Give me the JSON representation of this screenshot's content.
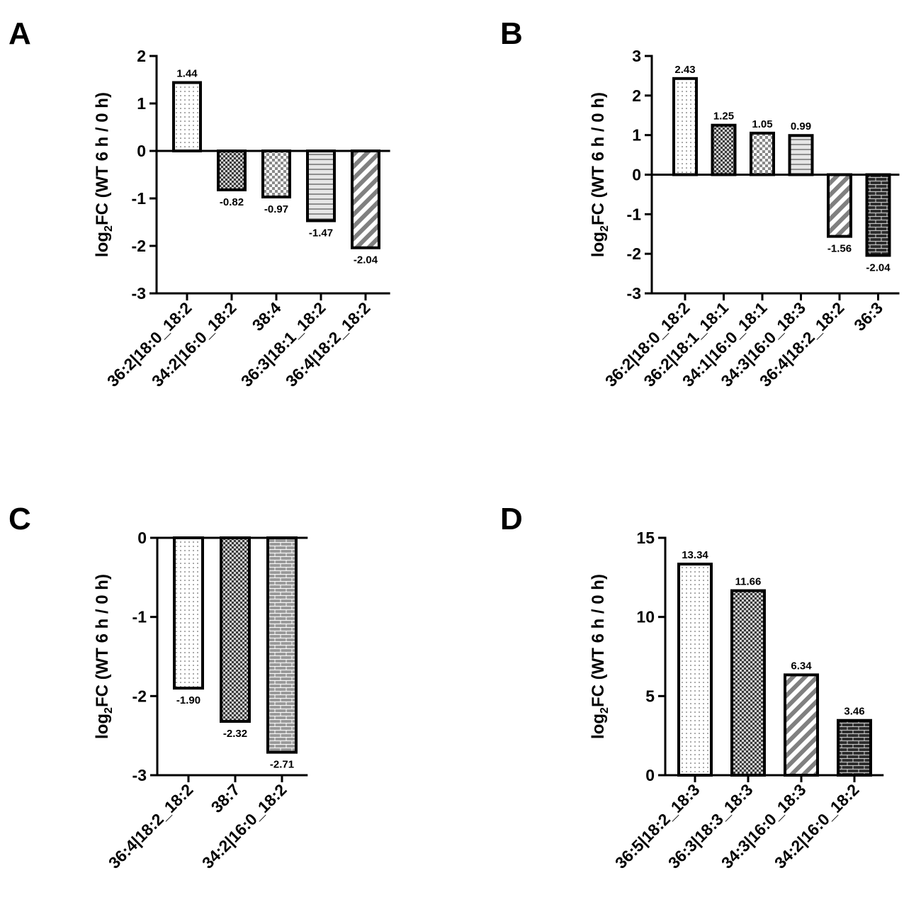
{
  "chart_data": [
    {
      "panel": "A",
      "type": "bar",
      "ylabel_main": "log",
      "ylabel_sub": "2",
      "ylabel_rest": "FC (WT 6 h / 0 h)",
      "ylim": [
        -3,
        2
      ],
      "yticks": [
        "-3",
        "-2",
        "-1",
        "0",
        "1",
        "2"
      ],
      "categories": [
        "36:2|18:0_18:2",
        "34:2|16:0_18:2",
        "38:4",
        "36:3|18:1_18:2",
        "36:4|18:2_18:2"
      ],
      "values": [
        1.44,
        -0.82,
        -0.97,
        -1.47,
        -2.04
      ],
      "value_labels": [
        "1.44",
        "-0.82",
        "-0.97",
        "-1.47",
        "-2.04"
      ],
      "patterns": [
        "dots",
        "checker-dark",
        "checker-light",
        "hlines",
        "diag"
      ]
    },
    {
      "panel": "B",
      "type": "bar",
      "ylabel_main": "log",
      "ylabel_sub": "2",
      "ylabel_rest": "FC (WT 6 h / 0 h)",
      "ylim": [
        -3,
        3
      ],
      "yticks": [
        "-3",
        "-2",
        "-1",
        "0",
        "1",
        "2",
        "3"
      ],
      "categories": [
        "36:2|18:0_18:2",
        "36:2|18:1_18:1",
        "34:1|16:0_18:1",
        "34:3|16:0_18:3",
        "36:4|18:2_18:2",
        "36:3"
      ],
      "values": [
        2.43,
        1.25,
        1.05,
        0.99,
        -1.56,
        -2.04
      ],
      "value_labels": [
        "2.43",
        "1.25",
        "1.05",
        "0.99",
        "-1.56",
        "-2.04"
      ],
      "patterns": [
        "dots",
        "checker-dark",
        "checker-light",
        "hlines",
        "diag",
        "brick-dark"
      ]
    },
    {
      "panel": "C",
      "type": "bar",
      "ylabel_main": "log",
      "ylabel_sub": "2",
      "ylabel_rest": "FC (WT 6 h / 0 h)",
      "ylim": [
        -3,
        0
      ],
      "yticks": [
        "-3",
        "-2",
        "-1",
        "0"
      ],
      "categories": [
        "36:4|18:2_18:2",
        "38:7",
        "34:2|16:0_18:2"
      ],
      "values": [
        -1.9,
        -2.32,
        -2.71
      ],
      "value_labels": [
        "-1.90",
        "-2.32",
        "-2.71"
      ],
      "patterns": [
        "dots",
        "checker-dark",
        "brick-light"
      ]
    },
    {
      "panel": "D",
      "type": "bar",
      "ylabel_main": "log",
      "ylabel_sub": "2",
      "ylabel_rest": "FC (WT 6 h / 0 h)",
      "ylim": [
        0,
        15
      ],
      "yticks": [
        "0",
        "5",
        "10",
        "15"
      ],
      "categories": [
        "36:5|18:2_18:3",
        "36:3|18:3_18:3",
        "34:3|16:0_18:3",
        "34:2|16:0_18:2"
      ],
      "values": [
        13.34,
        11.66,
        6.34,
        3.46
      ],
      "value_labels": [
        "13.34",
        "11.66",
        "6.34",
        "3.46"
      ],
      "patterns": [
        "dots",
        "checker-dark",
        "diag",
        "brick-dark"
      ]
    }
  ]
}
